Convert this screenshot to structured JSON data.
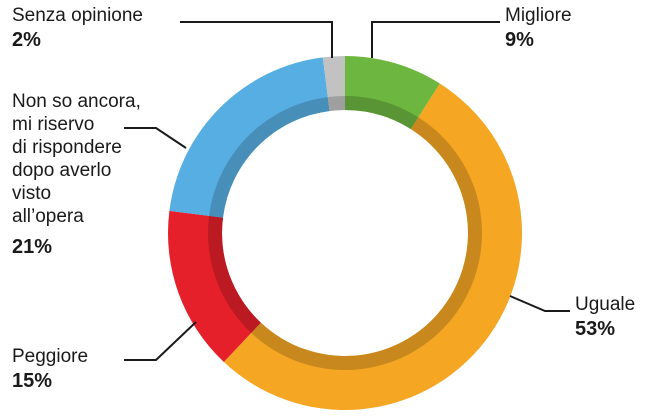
{
  "chart_data": {
    "type": "pie",
    "style": "donut",
    "slices": [
      {
        "label": "Senza opinione",
        "value_label": "2%",
        "value": 2,
        "color": "#c2c2c2"
      },
      {
        "label": "Migliore",
        "value_label": "9%",
        "value": 9,
        "color": "#6db63f"
      },
      {
        "label": "Non so ancora,\nmi riservo\ndi rispondere\ndopo averlo\nvisto\nall’opera",
        "value_label": "21%",
        "value": 21,
        "color": "#56aee2"
      },
      {
        "label": "Peggiore",
        "value_label": "15%",
        "value": 15,
        "color": "#e5202a"
      },
      {
        "label": "Uguale",
        "value_label": "53%",
        "value": 53,
        "color": "#f5a623"
      }
    ],
    "order_clockwise_from_top": [
      "Migliore",
      "Uguale",
      "Peggiore",
      "Non so ancora,\nmi riservo\ndi rispondere\ndopo averlo\nvisto\nall’opera",
      "Senza opinione"
    ]
  }
}
